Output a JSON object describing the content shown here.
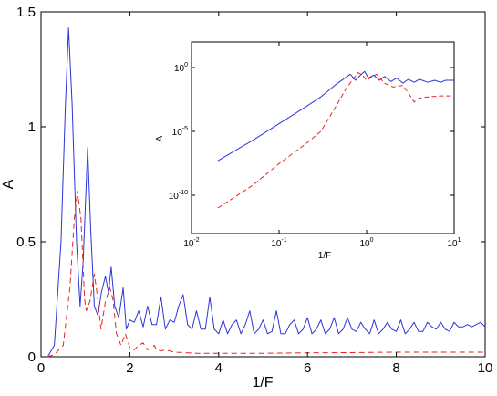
{
  "chart_data": [
    {
      "type": "line",
      "xlabel": "1/F",
      "ylabel": "A",
      "xlim": [
        0,
        10
      ],
      "ylim": [
        0,
        1.5
      ],
      "x_ticks": [
        0,
        2,
        4,
        6,
        8,
        10
      ],
      "x_tick_labels": [
        "0",
        "2",
        "4",
        "6",
        "8",
        "10"
      ],
      "y_ticks": [
        0,
        0.5,
        1,
        1.5
      ],
      "y_tick_labels": [
        "0",
        "0.5",
        "1",
        "1.5"
      ],
      "grid": false,
      "series": [
        {
          "color": "#2b35d8",
          "style": "solid",
          "points": [
            [
              0.15,
              0.0
            ],
            [
              0.3,
              0.05
            ],
            [
              0.45,
              0.5
            ],
            [
              0.55,
              1.1
            ],
            [
              0.62,
              1.43
            ],
            [
              0.7,
              1.1
            ],
            [
              0.8,
              0.5
            ],
            [
              0.88,
              0.22
            ],
            [
              0.95,
              0.42
            ],
            [
              1.05,
              0.91
            ],
            [
              1.12,
              0.55
            ],
            [
              1.2,
              0.22
            ],
            [
              1.28,
              0.18
            ],
            [
              1.36,
              0.28
            ],
            [
              1.45,
              0.35
            ],
            [
              1.52,
              0.28
            ],
            [
              1.58,
              0.39
            ],
            [
              1.66,
              0.22
            ],
            [
              1.75,
              0.17
            ],
            [
              1.85,
              0.3
            ],
            [
              1.92,
              0.12
            ],
            [
              2.0,
              0.16
            ],
            [
              2.1,
              0.15
            ],
            [
              2.2,
              0.2
            ],
            [
              2.3,
              0.13
            ],
            [
              2.4,
              0.22
            ],
            [
              2.5,
              0.14
            ],
            [
              2.6,
              0.14
            ],
            [
              2.7,
              0.26
            ],
            [
              2.8,
              0.12
            ],
            [
              2.9,
              0.16
            ],
            [
              3.0,
              0.15
            ],
            [
              3.1,
              0.22
            ],
            [
              3.2,
              0.27
            ],
            [
              3.3,
              0.14
            ],
            [
              3.4,
              0.12
            ],
            [
              3.5,
              0.2
            ],
            [
              3.6,
              0.12
            ],
            [
              3.7,
              0.12
            ],
            [
              3.8,
              0.26
            ],
            [
              3.9,
              0.12
            ],
            [
              4.0,
              0.1
            ],
            [
              4.1,
              0.16
            ],
            [
              4.2,
              0.1
            ],
            [
              4.3,
              0.14
            ],
            [
              4.4,
              0.16
            ],
            [
              4.5,
              0.1
            ],
            [
              4.6,
              0.14
            ],
            [
              4.7,
              0.2
            ],
            [
              4.8,
              0.1
            ],
            [
              4.9,
              0.12
            ],
            [
              5.0,
              0.16
            ],
            [
              5.1,
              0.1
            ],
            [
              5.2,
              0.11
            ],
            [
              5.3,
              0.2
            ],
            [
              5.4,
              0.1
            ],
            [
              5.5,
              0.1
            ],
            [
              5.6,
              0.14
            ],
            [
              5.7,
              0.16
            ],
            [
              5.8,
              0.1
            ],
            [
              5.9,
              0.12
            ],
            [
              6.0,
              0.17
            ],
            [
              6.1,
              0.1
            ],
            [
              6.2,
              0.12
            ],
            [
              6.3,
              0.16
            ],
            [
              6.4,
              0.1
            ],
            [
              6.5,
              0.12
            ],
            [
              6.6,
              0.17
            ],
            [
              6.7,
              0.1
            ],
            [
              6.8,
              0.12
            ],
            [
              6.9,
              0.17
            ],
            [
              7.0,
              0.12
            ],
            [
              7.1,
              0.11
            ],
            [
              7.2,
              0.15
            ],
            [
              7.3,
              0.12
            ],
            [
              7.4,
              0.1
            ],
            [
              7.5,
              0.16
            ],
            [
              7.6,
              0.1
            ],
            [
              7.7,
              0.12
            ],
            [
              7.8,
              0.15
            ],
            [
              7.9,
              0.12
            ],
            [
              8.0,
              0.11
            ],
            [
              8.1,
              0.16
            ],
            [
              8.2,
              0.1
            ],
            [
              8.3,
              0.12
            ],
            [
              8.4,
              0.15
            ],
            [
              8.5,
              0.11
            ],
            [
              8.6,
              0.11
            ],
            [
              8.7,
              0.15
            ],
            [
              8.8,
              0.13
            ],
            [
              8.9,
              0.12
            ],
            [
              9.0,
              0.15
            ],
            [
              9.1,
              0.12
            ],
            [
              9.2,
              0.11
            ],
            [
              9.3,
              0.15
            ],
            [
              9.4,
              0.13
            ],
            [
              9.5,
              0.13
            ],
            [
              9.6,
              0.14
            ],
            [
              9.7,
              0.13
            ],
            [
              9.8,
              0.14
            ],
            [
              9.9,
              0.15
            ],
            [
              10.0,
              0.13
            ]
          ]
        },
        {
          "color": "#e8231e",
          "style": "dashed",
          "points": [
            [
              0.15,
              0.0
            ],
            [
              0.3,
              0.01
            ],
            [
              0.5,
              0.05
            ],
            [
              0.65,
              0.3
            ],
            [
              0.75,
              0.6
            ],
            [
              0.82,
              0.72
            ],
            [
              0.9,
              0.6
            ],
            [
              0.98,
              0.25
            ],
            [
              1.02,
              0.2
            ],
            [
              1.1,
              0.24
            ],
            [
              1.2,
              0.36
            ],
            [
              1.28,
              0.25
            ],
            [
              1.35,
              0.12
            ],
            [
              1.45,
              0.24
            ],
            [
              1.55,
              0.3
            ],
            [
              1.62,
              0.25
            ],
            [
              1.7,
              0.1
            ],
            [
              1.8,
              0.05
            ],
            [
              1.9,
              0.1
            ],
            [
              2.0,
              0.04
            ],
            [
              2.1,
              0.03
            ],
            [
              2.2,
              0.05
            ],
            [
              2.3,
              0.06
            ],
            [
              2.4,
              0.03
            ],
            [
              2.5,
              0.04
            ],
            [
              2.55,
              0.05
            ],
            [
              2.6,
              0.03
            ],
            [
              2.7,
              0.025
            ],
            [
              2.8,
              0.03
            ],
            [
              3.0,
              0.02
            ],
            [
              3.5,
              0.015
            ],
            [
              4.0,
              0.015
            ],
            [
              5.0,
              0.015
            ],
            [
              6.0,
              0.017
            ],
            [
              7.0,
              0.018
            ],
            [
              8.0,
              0.02
            ],
            [
              9.0,
              0.02
            ],
            [
              10.0,
              0.02
            ]
          ]
        }
      ]
    },
    {
      "type": "line",
      "xlabel": "1/F",
      "ylabel": "A",
      "x_scale": "log",
      "y_scale": "log",
      "xlim": [
        0.01,
        10
      ],
      "ylim": [
        1e-13,
        100.0
      ],
      "x_ticks": [
        0.01,
        0.1,
        1,
        10
      ],
      "x_tick_labels": [
        [
          "10",
          "-2"
        ],
        [
          "10",
          "-1"
        ],
        [
          "10",
          "0"
        ],
        [
          "10",
          "1"
        ]
      ],
      "y_ticks": [
        1e-10,
        1e-05,
        1
      ],
      "y_tick_labels": [
        [
          "10",
          "-10"
        ],
        [
          "10",
          "-5"
        ],
        [
          "10",
          "0"
        ]
      ],
      "grid": false,
      "series": [
        {
          "color": "#2b35d8",
          "style": "solid",
          "points": [
            [
              0.02,
              5e-08
            ],
            [
              0.05,
              2e-06
            ],
            [
              0.1,
              4e-05
            ],
            [
              0.2,
              0.0008
            ],
            [
              0.3,
              0.005
            ],
            [
              0.45,
              0.05
            ],
            [
              0.6,
              0.2
            ],
            [
              0.65,
              0.3
            ],
            [
              0.75,
              0.1
            ],
            [
              0.85,
              0.25
            ],
            [
              0.95,
              0.5
            ],
            [
              1.05,
              0.15
            ],
            [
              1.2,
              0.25
            ],
            [
              1.4,
              0.1
            ],
            [
              1.6,
              0.2
            ],
            [
              1.9,
              0.08
            ],
            [
              2.2,
              0.15
            ],
            [
              2.6,
              0.06
            ],
            [
              3.0,
              0.12
            ],
            [
              3.5,
              0.07
            ],
            [
              4.0,
              0.12
            ],
            [
              5.0,
              0.07
            ],
            [
              6.0,
              0.1
            ],
            [
              7.0,
              0.07
            ],
            [
              8.0,
              0.1
            ],
            [
              10.0,
              0.1
            ]
          ]
        },
        {
          "color": "#e8231e",
          "style": "dashed",
          "points": [
            [
              0.02,
              1e-11
            ],
            [
              0.05,
              6e-10
            ],
            [
              0.1,
              3e-08
            ],
            [
              0.2,
              1e-06
            ],
            [
              0.3,
              1e-05
            ],
            [
              0.45,
              0.001
            ],
            [
              0.6,
              0.03
            ],
            [
              0.8,
              0.4
            ],
            [
              0.9,
              0.25
            ],
            [
              1.0,
              0.1
            ],
            [
              1.3,
              0.3
            ],
            [
              1.6,
              0.06
            ],
            [
              2.0,
              0.03
            ],
            [
              2.6,
              0.04
            ],
            [
              3.0,
              0.01
            ],
            [
              3.5,
              0.002
            ],
            [
              4.0,
              0.004
            ],
            [
              5.0,
              0.005
            ],
            [
              7.0,
              0.006
            ],
            [
              10.0,
              0.006
            ]
          ]
        }
      ]
    }
  ]
}
